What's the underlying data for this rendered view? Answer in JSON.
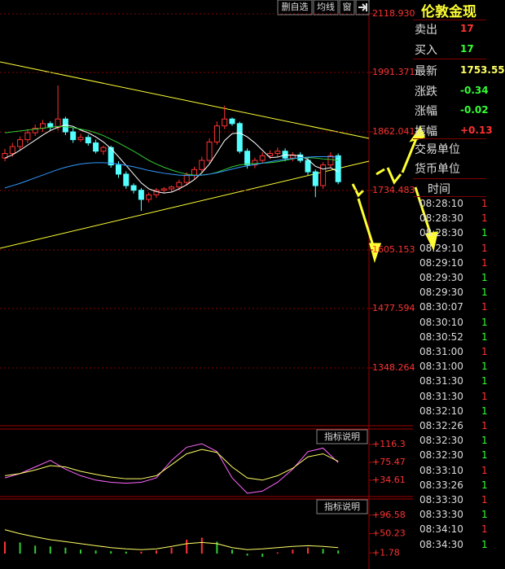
{
  "toolbar": {
    "buttons": [
      "删自选",
      "均线",
      "窗"
    ]
  },
  "chart_data": [
    {
      "type": "candlestick",
      "open": [
        1805,
        1815,
        1830,
        1845,
        1860,
        1870,
        1880,
        1872,
        1890,
        1862,
        1845,
        1850,
        1838,
        1820,
        1828,
        1790,
        1770,
        1745,
        1735,
        1715,
        1725,
        1735,
        1738,
        1742,
        1752,
        1768,
        1780,
        1800,
        1840,
        1875,
        1890,
        1880,
        1820,
        1790,
        1800,
        1810,
        1815,
        1820,
        1805,
        1812,
        1800,
        1775,
        1745,
        1790,
        1810
      ],
      "high": [
        1825,
        1838,
        1852,
        1868,
        1878,
        1888,
        1885,
        1963,
        1895,
        1870,
        1858,
        1856,
        1845,
        1832,
        1832,
        1798,
        1776,
        1750,
        1740,
        1730,
        1740,
        1742,
        1745,
        1758,
        1774,
        1786,
        1808,
        1848,
        1885,
        1919,
        1893,
        1884,
        1826,
        1806,
        1818,
        1822,
        1828,
        1826,
        1818,
        1818,
        1806,
        1780,
        1796,
        1818,
        1815
      ],
      "low": [
        1798,
        1808,
        1823,
        1838,
        1853,
        1862,
        1865,
        1865,
        1855,
        1838,
        1840,
        1832,
        1815,
        1812,
        1784,
        1762,
        1738,
        1728,
        1690,
        1708,
        1718,
        1728,
        1730,
        1735,
        1745,
        1760,
        1773,
        1794,
        1834,
        1868,
        1875,
        1815,
        1782,
        1783,
        1795,
        1803,
        1808,
        1798,
        1798,
        1795,
        1768,
        1720,
        1738,
        1785,
        1748
      ],
      "close": [
        1815,
        1830,
        1845,
        1860,
        1870,
        1880,
        1872,
        1890,
        1862,
        1845,
        1850,
        1838,
        1820,
        1828,
        1790,
        1770,
        1745,
        1735,
        1715,
        1725,
        1735,
        1738,
        1742,
        1752,
        1768,
        1780,
        1800,
        1840,
        1875,
        1890,
        1880,
        1820,
        1790,
        1800,
        1810,
        1815,
        1820,
        1805,
        1812,
        1800,
        1775,
        1745,
        1790,
        1810,
        1753.55
      ],
      "up_color": "#ff3232",
      "down_color": "#54ffff",
      "series": [
        {
          "color": "#ffffff",
          "values": [
            1805,
            1812,
            1822,
            1833,
            1844,
            1855,
            1865,
            1872,
            1877,
            1874,
            1866,
            1860,
            1851,
            1840,
            1826,
            1808,
            1789,
            1770,
            1751,
            1738,
            1732,
            1729,
            1731,
            1738,
            1747,
            1758,
            1773,
            1792,
            1817,
            1843,
            1858,
            1860,
            1851,
            1838,
            1822,
            1806,
            1807,
            1812,
            1811,
            1810,
            1802,
            1787,
            1781,
            1784,
            1775
          ]
        },
        {
          "color": "#33cc33",
          "values": [
            1860,
            1862,
            1864,
            1866,
            1868,
            1870,
            1872,
            1874,
            1873,
            1871,
            1868,
            1865,
            1860,
            1854,
            1846,
            1838,
            1829,
            1820,
            1810,
            1800,
            1792,
            1785,
            1779,
            1774,
            1770,
            1768,
            1768,
            1770,
            1774,
            1780,
            1786,
            1790,
            1792,
            1793,
            1794,
            1795,
            1797,
            1800,
            1803,
            1806,
            1806,
            1805,
            1803,
            1802,
            1800
          ]
        },
        {
          "color": "#3399ff",
          "values": [
            1740,
            1745,
            1750,
            1756,
            1762,
            1768,
            1774,
            1780,
            1785,
            1789,
            1792,
            1794,
            1795,
            1795,
            1794,
            1792,
            1789,
            1786,
            1782,
            1778,
            1775,
            1772,
            1770,
            1768,
            1767,
            1767,
            1768,
            1770,
            1773,
            1777,
            1781,
            1785,
            1788,
            1791,
            1794,
            1797,
            1800,
            1802,
            1804,
            1806,
            1807,
            1808,
            1808,
            1808,
            1807
          ]
        }
      ],
      "ylim": [
        1222.5,
        2149.0
      ],
      "yticks": [
        {
          "value": 2118.93,
          "label": "2118.930"
        },
        {
          "value": 1991.371,
          "label": "1991.371"
        },
        {
          "value": 1862.041,
          "label": "1862.041"
        },
        {
          "value": 1734.483,
          "label": "1734.483"
        },
        {
          "value": 1605.153,
          "label": "1605.153"
        },
        {
          "value": 1477.594,
          "label": "1477.594"
        },
        {
          "value": 1348.264,
          "label": "1348.264"
        }
      ],
      "grid": true
    },
    {
      "type": "line",
      "button_label": "指标说明",
      "series": [
        {
          "color": "#ff66ff",
          "values": [
            40,
            50,
            65,
            80,
            60,
            45,
            35,
            30,
            28,
            30,
            40,
            80,
            110,
            118,
            100,
            40,
            5,
            10,
            30,
            60,
            100,
            108,
            75
          ]
        },
        {
          "color": "#ffff66",
          "values": [
            45,
            50,
            58,
            68,
            65,
            55,
            48,
            42,
            38,
            38,
            45,
            70,
            95,
            105,
            98,
            65,
            40,
            35,
            45,
            62,
            88,
            95,
            78
          ]
        }
      ],
      "ylim": [
        -2.5,
        151.6
      ],
      "yticks": [
        {
          "value": 116.3,
          "label": "+116.3"
        },
        {
          "value": 75.47,
          "label": "+75.47"
        },
        {
          "value": 34.61,
          "label": "+34.61"
        }
      ]
    },
    {
      "type": "bar-line",
      "button_label": "指标说明",
      "bars": [
        30,
        28,
        20,
        18,
        15,
        10,
        8,
        6,
        5,
        5,
        8,
        15,
        35,
        40,
        30,
        10,
        -5,
        -8,
        3,
        10,
        15,
        12,
        8
      ],
      "up_color": "#ff3232",
      "down_color": "#33cc33",
      "series": [
        {
          "color": "#ffff66",
          "values": [
            60,
            50,
            42,
            35,
            30,
            25,
            20,
            15,
            12,
            10,
            12,
            18,
            25,
            28,
            25,
            15,
            10,
            12,
            15,
            18,
            20,
            18,
            15
          ]
        }
      ],
      "ylim": [
        -38.5,
        136.9
      ],
      "yticks": [
        {
          "value": 96.58,
          "label": "+96.58"
        },
        {
          "value": 50.23,
          "label": "+50.23"
        },
        {
          "value": 1.78,
          "label": "+1.78"
        }
      ]
    }
  ],
  "quote": {
    "title": "伦敦金现",
    "rows": [
      {
        "label": "卖出",
        "value": "17",
        "color": "#ff3232"
      },
      {
        "label": "买入",
        "value": "17",
        "color": "#33ff33"
      },
      {
        "label": "最新",
        "value": "1753.55",
        "color": "#ffff66"
      },
      {
        "label": "涨跌",
        "value": "-0.34",
        "color": "#33ff33"
      },
      {
        "label": "涨幅",
        "value": "-0.02",
        "color": "#33ff33"
      },
      {
        "label": "振幅",
        "value": "+0.13",
        "color": "#ff3232"
      }
    ],
    "units": [
      "交易单位",
      "货币单位"
    ],
    "time_header": "时间",
    "trades": [
      {
        "time": "08:28:10",
        "price": "1",
        "color": "#ff3232"
      },
      {
        "time": "08:28:30",
        "price": "1",
        "color": "#ff3232"
      },
      {
        "time": "08:28:30",
        "price": "1",
        "color": "#33ff33"
      },
      {
        "time": "08:29:10",
        "price": "1",
        "color": "#ff3232"
      },
      {
        "time": "08:29:10",
        "price": "1",
        "color": "#ff3232"
      },
      {
        "time": "08:29:30",
        "price": "1",
        "color": "#33ff33"
      },
      {
        "time": "08:29:30",
        "price": "1",
        "color": "#33ff33"
      },
      {
        "time": "08:30:07",
        "price": "1",
        "color": "#ff3232"
      },
      {
        "time": "08:30:10",
        "price": "1",
        "color": "#33ff33"
      },
      {
        "time": "08:30:52",
        "price": "1",
        "color": "#33ff33"
      },
      {
        "time": "08:31:00",
        "price": "1",
        "color": "#ff3232"
      },
      {
        "time": "08:31:00",
        "price": "1",
        "color": "#33ff33"
      },
      {
        "time": "08:31:30",
        "price": "1",
        "color": "#33ff33"
      },
      {
        "time": "08:31:30",
        "price": "1",
        "color": "#ff3232"
      },
      {
        "time": "08:32:10",
        "price": "1",
        "color": "#33ff33"
      },
      {
        "time": "08:32:26",
        "price": "1",
        "color": "#ff3232"
      },
      {
        "time": "08:32:30",
        "price": "1",
        "color": "#33ff33"
      },
      {
        "time": "08:32:30",
        "price": "1",
        "color": "#33ff33"
      },
      {
        "time": "08:33:10",
        "price": "1",
        "color": "#ff3232"
      },
      {
        "time": "08:33:26",
        "price": "1",
        "color": "#33ff33"
      },
      {
        "time": "08:33:30",
        "price": "1",
        "color": "#ff3232"
      },
      {
        "time": "08:33:30",
        "price": "1",
        "color": "#33ff33"
      },
      {
        "time": "08:34:10",
        "price": "1",
        "color": "#ff3232"
      },
      {
        "time": "08:34:30",
        "price": "1",
        "color": "#33ff33"
      }
    ]
  }
}
